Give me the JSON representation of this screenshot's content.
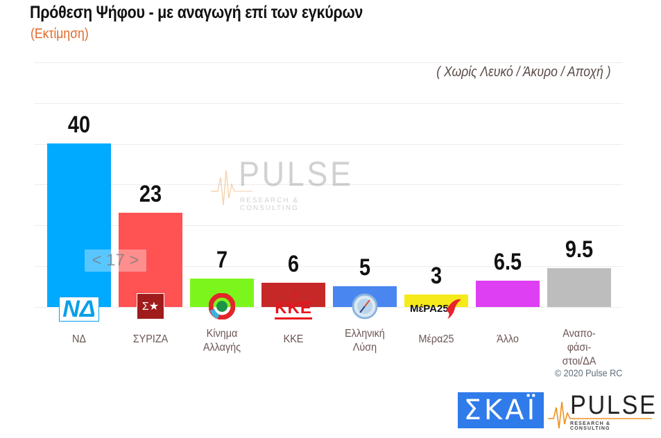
{
  "header": {
    "title": "Πρόθεση Ψήφου - με αναγωγή επί των εγκύρων",
    "subtitle": "(Εκτίμηση)",
    "note": "( Χωρίς Λευκό / Άκυρο / Αποχή )"
  },
  "watermark": {
    "brand": "PULSE",
    "tagline": "RESEARCH & CONSULTING"
  },
  "difference_badge": "< 17 >",
  "footer": {
    "copyright": "© 2020 Pulse RC",
    "skai_logo": "ΣΚΑΪ",
    "pulse_logo": "PULSE",
    "pulse_tagline": "RESEARCH & CONSULTING"
  },
  "bars": [
    {
      "label": "ΝΔ",
      "value": "40",
      "color": "#00aaff",
      "logo": "nd-logo"
    },
    {
      "label": "ΣΥΡΙΖΑ",
      "value": "23",
      "color": "#ff5252",
      "logo": "syriza-logo"
    },
    {
      "label": "Κίνημα\nΑλλαγής",
      "value": "7",
      "color": "#7cf51d",
      "logo": "kinal-logo"
    },
    {
      "label": "ΚΚΕ",
      "value": "6",
      "color": "#c62828",
      "logo": "kke-logo"
    },
    {
      "label": "Ελληνική\nΛύση",
      "value": "5",
      "color": "#4a86f0",
      "logo": "elliniki-lysi-logo"
    },
    {
      "label": "Μέρα25",
      "value": "3",
      "color": "#f7ea1a",
      "logo": "mera25-logo"
    },
    {
      "label": "Άλλο",
      "value": "6.5",
      "color": "#de3ff2",
      "logo": ""
    },
    {
      "label": "Αναπο-\nφάσι-\nστοι/ΔΑ",
      "value": "9.5",
      "color": "#bdbdbd",
      "logo": ""
    }
  ],
  "logos": {
    "nd": "ΝΔ",
    "syriza": "ΣΥ",
    "kke": "ΚΚΕ",
    "mera25": "ΜέΡΑ25"
  },
  "chart_data": {
    "type": "bar",
    "title": "Πρόθεση Ψήφου - με αναγωγή επί των εγκύρων",
    "subtitle": "(Εκτίμηση)",
    "annotation": "( Χωρίς Λευκό / Άκυρο / Αποχή )",
    "categories": [
      "ΝΔ",
      "ΣΥΡΙΖΑ",
      "Κίνημα Αλλαγής",
      "ΚΚΕ",
      "Ελληνική Λύση",
      "Μέρα25",
      "Άλλο",
      "Αναποφάσιστοι/ΔΑ"
    ],
    "values": [
      40,
      23,
      7,
      6,
      5,
      3,
      6.5,
      9.5
    ],
    "colors": [
      "#00aaff",
      "#ff5252",
      "#7cf51d",
      "#c62828",
      "#4a86f0",
      "#f7ea1a",
      "#de3ff2",
      "#bdbdbd"
    ],
    "difference_annotation": {
      "between": [
        "ΝΔ",
        "ΣΥΡΙΖΑ"
      ],
      "text": "< 17 >"
    },
    "xlabel": "",
    "ylabel": "",
    "ylim": [
      0,
      60
    ],
    "grid": true,
    "legend": "none",
    "source": "© 2020 Pulse RC"
  }
}
